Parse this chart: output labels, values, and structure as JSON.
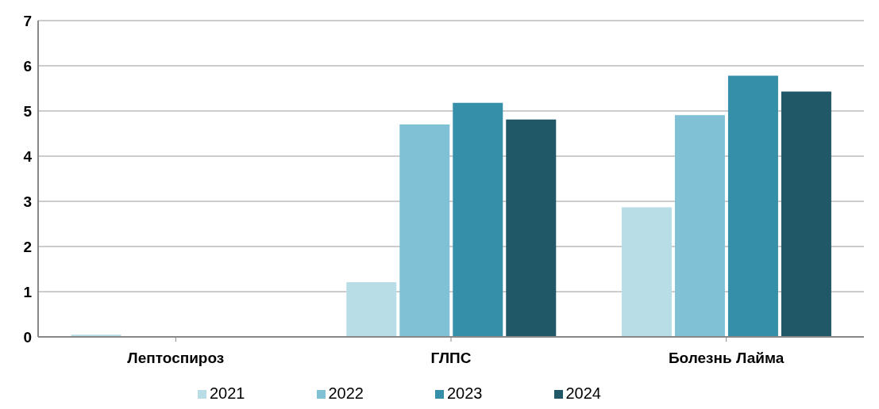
{
  "chart_data": {
    "type": "bar",
    "categories": [
      "Лептоспироз",
      "ГЛПС",
      "Болезнь Лайма"
    ],
    "series": [
      {
        "name": "2021",
        "color": "#b9dde6",
        "values": [
          0.05,
          1.21,
          2.87
        ]
      },
      {
        "name": "2022",
        "color": "#80c1d5",
        "values": [
          0,
          4.7,
          4.91
        ]
      },
      {
        "name": "2023",
        "color": "#368fa8",
        "values": [
          0,
          5.18,
          5.78
        ]
      },
      {
        "name": "2024",
        "color": "#215868",
        "values": [
          0,
          4.81,
          5.43
        ]
      }
    ],
    "ylim": [
      0,
      7
    ],
    "yticks": [
      0,
      1,
      2,
      3,
      4,
      5,
      6,
      7
    ],
    "grid": "y",
    "legend": "bottom"
  }
}
